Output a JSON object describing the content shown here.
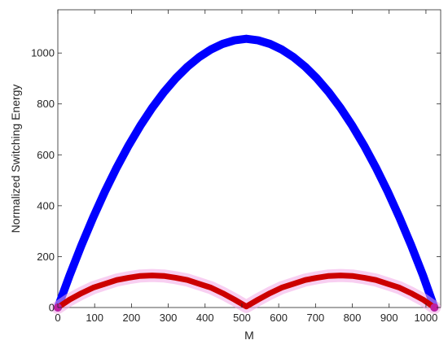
{
  "chart_data": {
    "type": "line",
    "title": "",
    "xlabel": "M",
    "ylabel": "Normalized Switching Energy",
    "xlim": [
      0,
      1040
    ],
    "ylim": [
      0,
      1170
    ],
    "x_ticks": [
      0,
      100,
      200,
      300,
      400,
      500,
      600,
      700,
      800,
      900,
      1000
    ],
    "y_ticks": [
      0,
      200,
      400,
      600,
      800,
      1000
    ],
    "grid": false,
    "legend": "none",
    "series": [
      {
        "color": "#0000ff",
        "x": [
          0,
          32,
          64,
          96,
          128,
          160,
          192,
          224,
          256,
          288,
          320,
          352,
          384,
          416,
          448,
          480,
          512,
          544,
          576,
          608,
          640,
          672,
          704,
          736,
          768,
          800,
          832,
          864,
          896,
          928,
          960,
          992,
          1023
        ],
        "y": [
          0,
          126,
          244,
          354,
          456,
          550,
          636,
          714,
          784,
          846,
          900,
          946,
          984,
          1014,
          1036,
          1050,
          1056,
          1050,
          1036,
          1014,
          984,
          946,
          900,
          846,
          784,
          714,
          636,
          550,
          456,
          354,
          244,
          126,
          0
        ]
      },
      {
        "color": "#cc0000",
        "x": [
          0,
          32,
          64,
          96,
          128,
          160,
          192,
          224,
          256,
          288,
          320,
          352,
          384,
          416,
          448,
          480,
          512,
          544,
          576,
          608,
          640,
          672,
          704,
          736,
          768,
          800,
          832,
          864,
          896,
          928,
          960,
          992,
          1023
        ],
        "y": [
          0,
          31,
          56,
          78,
          93,
          108,
          117,
          124,
          126,
          124,
          117,
          108,
          93,
          78,
          56,
          31,
          4,
          31,
          56,
          78,
          93,
          108,
          117,
          124,
          126,
          124,
          117,
          108,
          93,
          78,
          56,
          31,
          0
        ]
      }
    ]
  }
}
